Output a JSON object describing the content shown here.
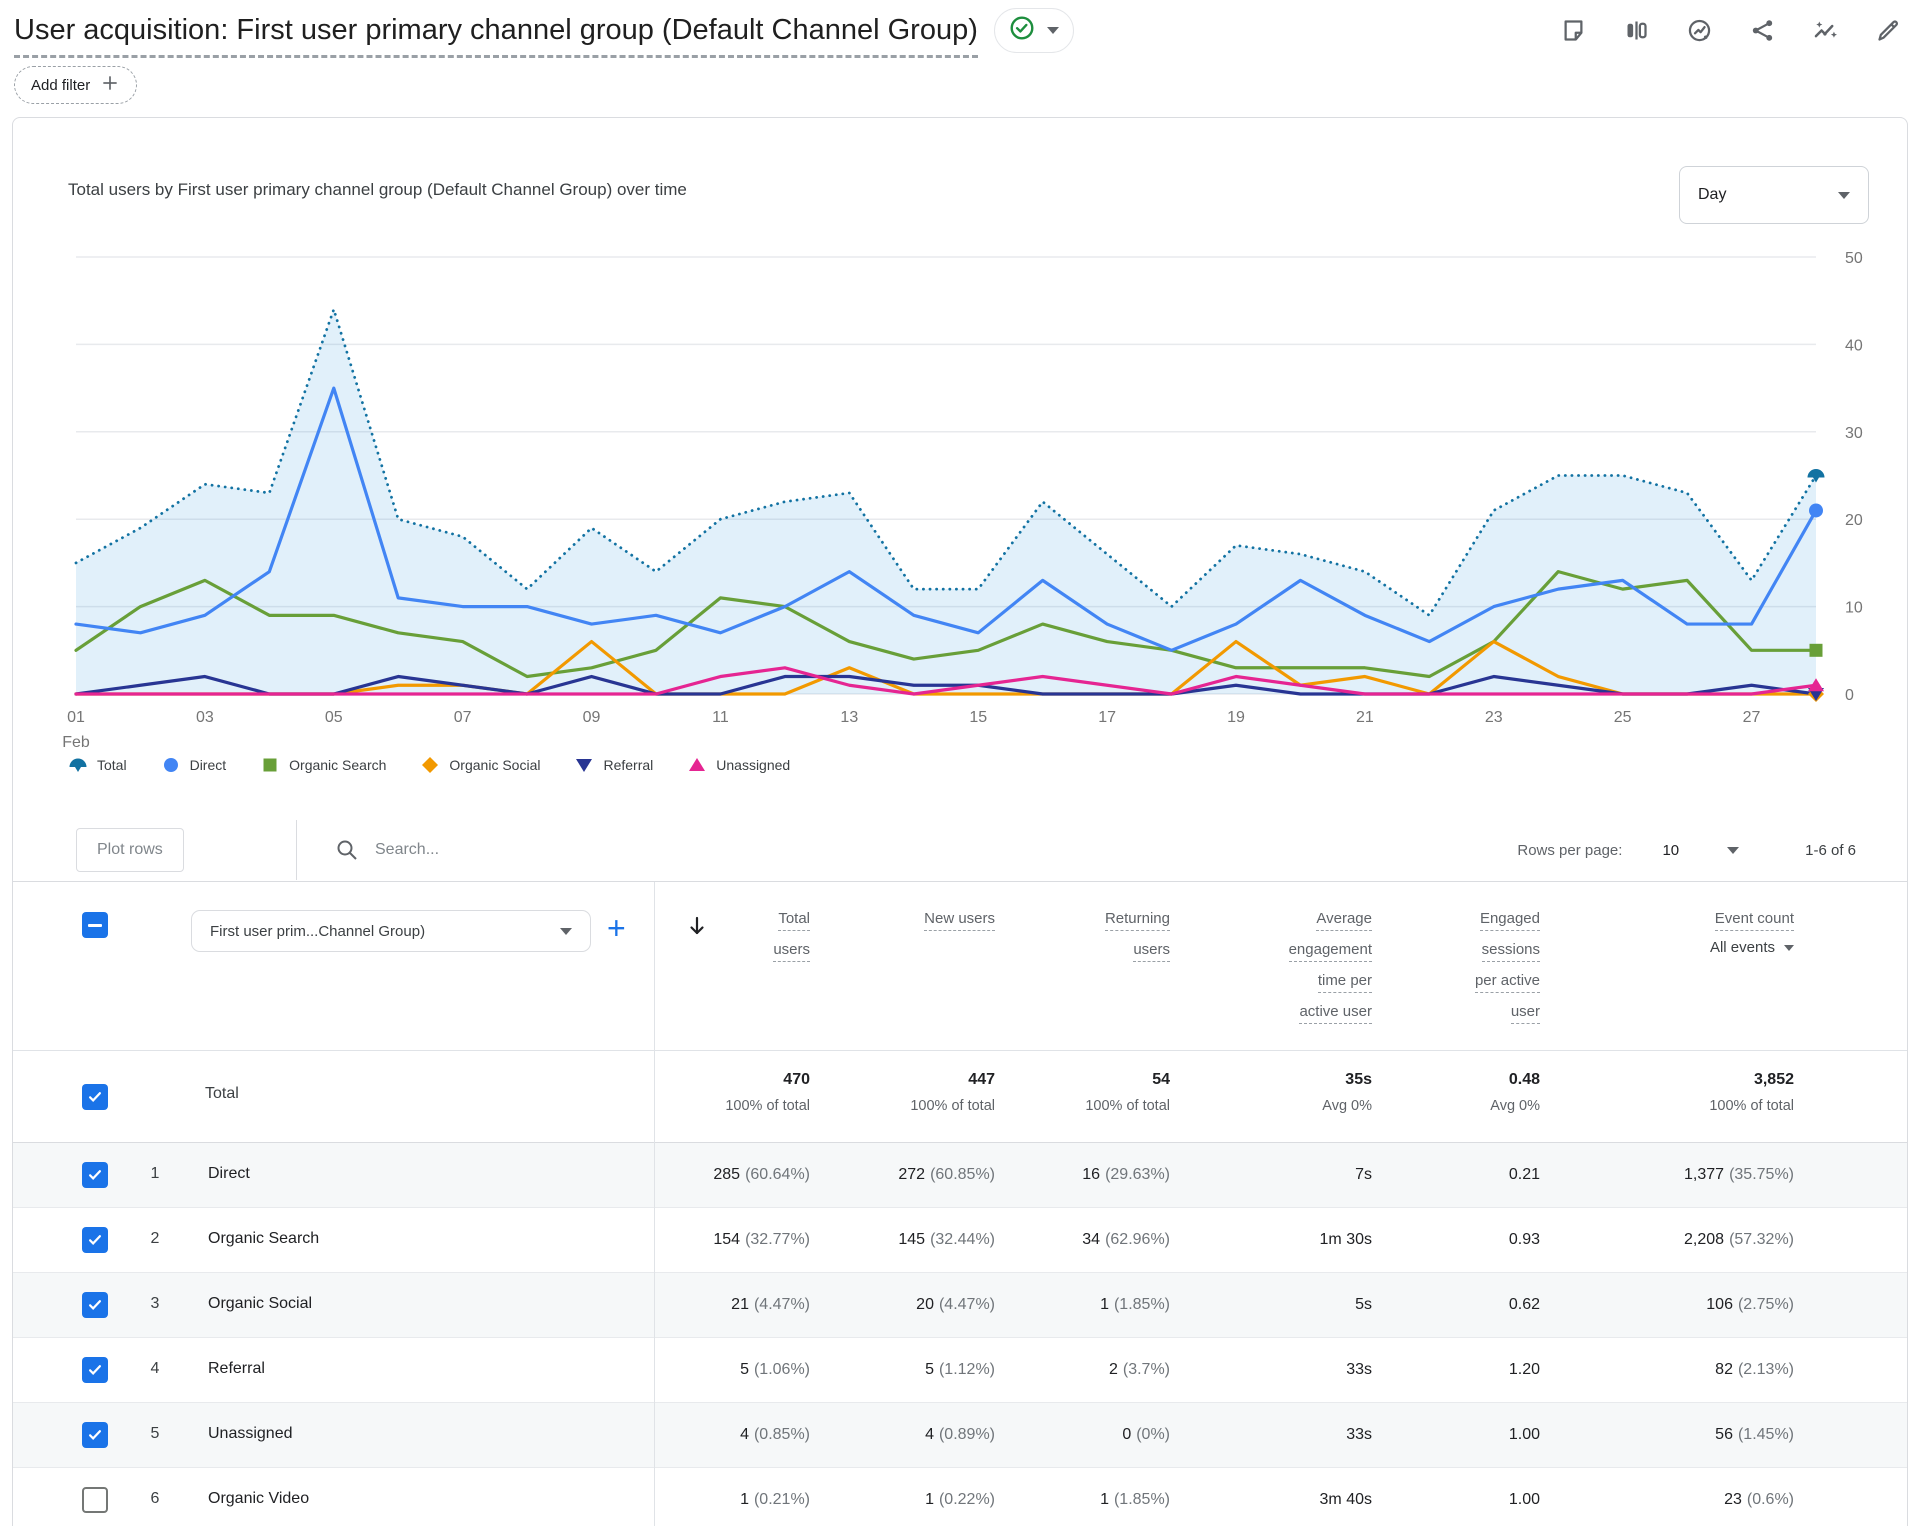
{
  "header": {
    "title": "User acquisition: First user primary channel group (Default Channel Group)",
    "add_filter_label": "Add filter",
    "status_badge": "valid-checkmark"
  },
  "top_icons": [
    "note-icon",
    "comparison-icon",
    "insights-circle-icon",
    "share-icon",
    "sparkline-insights-icon",
    "edit-pencil-icon"
  ],
  "chart": {
    "title": "Total users by First user primary channel group (Default Channel Group) over time",
    "granularity": "Day"
  },
  "chart_data": {
    "type": "line",
    "title": "Total users by First user primary channel group (Default Channel Group) over time",
    "xlabel": "Day of February",
    "ylabel": "Total users",
    "ylim": [
      0,
      50
    ],
    "yticks": [
      0,
      10,
      20,
      30,
      40,
      50
    ],
    "grid": "horizontal",
    "legend_position": "bottom",
    "x_days": [
      1,
      2,
      3,
      4,
      5,
      6,
      7,
      8,
      9,
      10,
      11,
      12,
      13,
      14,
      15,
      16,
      17,
      18,
      19,
      20,
      21,
      22,
      23,
      24,
      25,
      26,
      27,
      28
    ],
    "x_ticks": [
      {
        "i": 0,
        "label": "01",
        "sub": "Feb"
      },
      {
        "i": 2,
        "label": "03"
      },
      {
        "i": 4,
        "label": "05"
      },
      {
        "i": 6,
        "label": "07"
      },
      {
        "i": 8,
        "label": "09"
      },
      {
        "i": 10,
        "label": "11"
      },
      {
        "i": 12,
        "label": "13"
      },
      {
        "i": 14,
        "label": "15"
      },
      {
        "i": 16,
        "label": "17"
      },
      {
        "i": 18,
        "label": "19"
      },
      {
        "i": 20,
        "label": "21"
      },
      {
        "i": 22,
        "label": "23"
      },
      {
        "i": 24,
        "label": "25"
      },
      {
        "i": 26,
        "label": "27"
      }
    ],
    "area_fill": "rgba(26,140,216,0.13)",
    "series": [
      {
        "name": "Total",
        "color": "#1272a2",
        "marker": "fan",
        "style": "dotted-area",
        "values": [
          15,
          19,
          24,
          23,
          44,
          20,
          18,
          12,
          19,
          14,
          20,
          22,
          23,
          12,
          12,
          22,
          16,
          10,
          17,
          16,
          14,
          9,
          21,
          25,
          25,
          23,
          13,
          25
        ]
      },
      {
        "name": "Direct",
        "color": "#4285f4",
        "marker": "circle",
        "style": "solid",
        "values": [
          8,
          7,
          9,
          14,
          35,
          11,
          10,
          10,
          8,
          9,
          7,
          10,
          14,
          9,
          7,
          13,
          8,
          5,
          8,
          13,
          9,
          6,
          10,
          12,
          13,
          8,
          8,
          21
        ]
      },
      {
        "name": "Organic Search",
        "color": "#689f38",
        "marker": "square",
        "style": "solid",
        "values": [
          5,
          10,
          13,
          9,
          9,
          7,
          6,
          2,
          3,
          5,
          11,
          10,
          6,
          4,
          5,
          8,
          6,
          5,
          3,
          3,
          3,
          2,
          6,
          14,
          12,
          13,
          5,
          5
        ]
      },
      {
        "name": "Organic Social",
        "color": "#f29900",
        "marker": "diamond",
        "style": "solid",
        "values": [
          0,
          0,
          0,
          0,
          0,
          1,
          1,
          0,
          6,
          0,
          0,
          0,
          3,
          0,
          0,
          0,
          0,
          0,
          6,
          1,
          2,
          0,
          6,
          2,
          0,
          0,
          0,
          0
        ]
      },
      {
        "name": "Referral",
        "color": "#283593",
        "marker": "triangle-down",
        "style": "solid",
        "values": [
          0,
          1,
          2,
          0,
          0,
          2,
          1,
          0,
          2,
          0,
          0,
          2,
          2,
          1,
          1,
          0,
          0,
          0,
          1,
          0,
          0,
          0,
          2,
          1,
          0,
          0,
          1,
          0
        ]
      },
      {
        "name": "Unassigned",
        "color": "#e52592",
        "marker": "triangle-up",
        "style": "solid",
        "values": [
          0,
          0,
          0,
          0,
          0,
          0,
          0,
          0,
          0,
          0,
          2,
          3,
          1,
          0,
          1,
          2,
          1,
          0,
          2,
          1,
          0,
          0,
          0,
          0,
          0,
          0,
          0,
          1
        ]
      }
    ]
  },
  "table": {
    "toolbar": {
      "plot_rows_label": "Plot rows",
      "search_placeholder": "Search...",
      "rows_per_page_label": "Rows per page:",
      "rows_per_page_value": "10",
      "range_label": "1-6 of 6"
    },
    "dimension_selector": "First user prim...Channel Group)",
    "columns": [
      {
        "lines": [
          "Total",
          "users"
        ]
      },
      {
        "lines": [
          "New users"
        ]
      },
      {
        "lines": [
          "Returning",
          "users"
        ]
      },
      {
        "lines": [
          "Average",
          "engagement",
          "time per",
          "active user"
        ]
      },
      {
        "lines": [
          "Engaged",
          "sessions",
          "per active",
          "user"
        ]
      },
      {
        "lines": [
          "Event count"
        ],
        "filter": "All events"
      }
    ],
    "total_row": {
      "label": "Total",
      "cells": [
        {
          "v": "470",
          "s": "100% of total"
        },
        {
          "v": "447",
          "s": "100% of total"
        },
        {
          "v": "54",
          "s": "100% of total"
        },
        {
          "v": "35s",
          "s": "Avg 0%"
        },
        {
          "v": "0.48",
          "s": "Avg 0%"
        },
        {
          "v": "3,852",
          "s": "100% of total"
        }
      ]
    },
    "rows": [
      {
        "num": "1",
        "name": "Direct",
        "checked": true,
        "cells": [
          {
            "v": "285",
            "p": "(60.64%)"
          },
          {
            "v": "272",
            "p": "(60.85%)"
          },
          {
            "v": "16",
            "p": "(29.63%)"
          },
          {
            "v": "7s"
          },
          {
            "v": "0.21"
          },
          {
            "v": "1,377",
            "p": "(35.75%)"
          }
        ]
      },
      {
        "num": "2",
        "name": "Organic Search",
        "checked": true,
        "cells": [
          {
            "v": "154",
            "p": "(32.77%)"
          },
          {
            "v": "145",
            "p": "(32.44%)"
          },
          {
            "v": "34",
            "p": "(62.96%)"
          },
          {
            "v": "1m 30s"
          },
          {
            "v": "0.93"
          },
          {
            "v": "2,208",
            "p": "(57.32%)"
          }
        ]
      },
      {
        "num": "3",
        "name": "Organic Social",
        "checked": true,
        "cells": [
          {
            "v": "21",
            "p": "(4.47%)"
          },
          {
            "v": "20",
            "p": "(4.47%)"
          },
          {
            "v": "1",
            "p": "(1.85%)"
          },
          {
            "v": "5s"
          },
          {
            "v": "0.62"
          },
          {
            "v": "106",
            "p": "(2.75%)"
          }
        ]
      },
      {
        "num": "4",
        "name": "Referral",
        "checked": true,
        "cells": [
          {
            "v": "5",
            "p": "(1.06%)"
          },
          {
            "v": "5",
            "p": "(1.12%)"
          },
          {
            "v": "2",
            "p": "(3.7%)"
          },
          {
            "v": "33s"
          },
          {
            "v": "1.20"
          },
          {
            "v": "82",
            "p": "(2.13%)"
          }
        ]
      },
      {
        "num": "5",
        "name": "Unassigned",
        "checked": true,
        "cells": [
          {
            "v": "4",
            "p": "(0.85%)"
          },
          {
            "v": "4",
            "p": "(0.89%)"
          },
          {
            "v": "0",
            "p": "(0%)"
          },
          {
            "v": "33s"
          },
          {
            "v": "1.00"
          },
          {
            "v": "56",
            "p": "(1.45%)"
          }
        ]
      },
      {
        "num": "6",
        "name": "Organic Video",
        "checked": false,
        "cells": [
          {
            "v": "1",
            "p": "(0.21%)"
          },
          {
            "v": "1",
            "p": "(0.22%)"
          },
          {
            "v": "1",
            "p": "(1.85%)"
          },
          {
            "v": "3m 40s"
          },
          {
            "v": "1.00"
          },
          {
            "v": "23",
            "p": "(0.6%)"
          }
        ]
      }
    ]
  }
}
